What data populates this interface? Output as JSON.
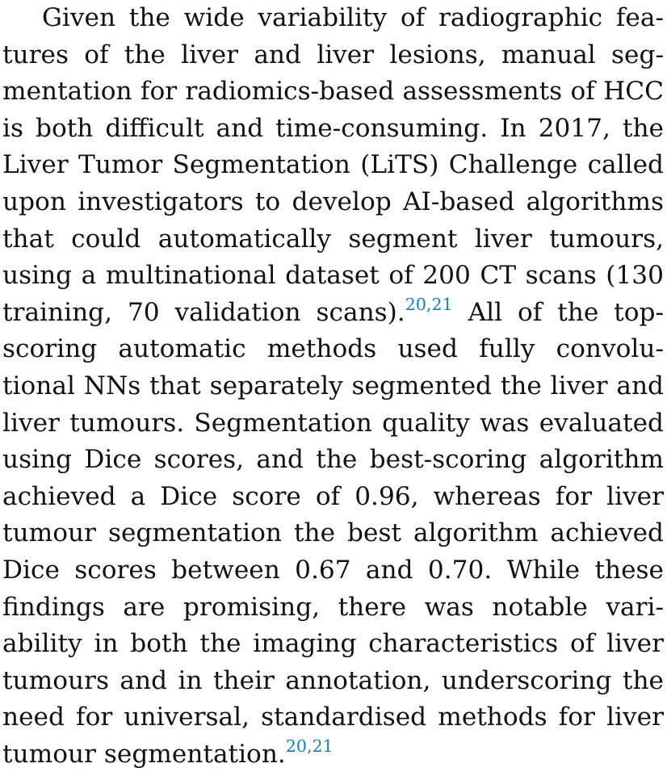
{
  "paragraph": {
    "lines": [
      "Given the wide variability of radiographic fea-",
      "tures of the liver and liver lesions, manual seg-",
      "mentation for radiomics-based assessments of HCC",
      "is both difficult and time-consuming. In 2017, the",
      "Liver Tumor Segmentation (LiTS) Challenge called",
      "upon investigators to develop AI-based algorithms",
      "that could automatically segment liver tumours,",
      "using a multinational dataset of 200 CT scans (130",
      "training, 70 validation scans).",
      "All of the top-",
      "scoring automatic methods used fully convolu-",
      "tional NNs that separately segmented the liver and",
      "liver tumours. Segmentation quality was evaluated",
      "using Dice scores, and the best-scoring algorithm",
      "achieved a Dice score of 0.96, whereas for liver",
      "tumour segmentation the best algorithm achieved",
      "Dice scores between 0.67 and 0.70. While these",
      "findings are promising, there was notable vari-",
      "ability in both the imaging characteristics of liver",
      "tumours and in their annotation, underscoring the",
      "need for universal, standardised methods for liver",
      "tumour segmentation."
    ],
    "citations": {
      "first": {
        "ref_a": "20",
        "separator": ",",
        "ref_b": "21"
      },
      "second": {
        "ref_a": "20",
        "separator": ",",
        "ref_b": "21"
      }
    }
  }
}
